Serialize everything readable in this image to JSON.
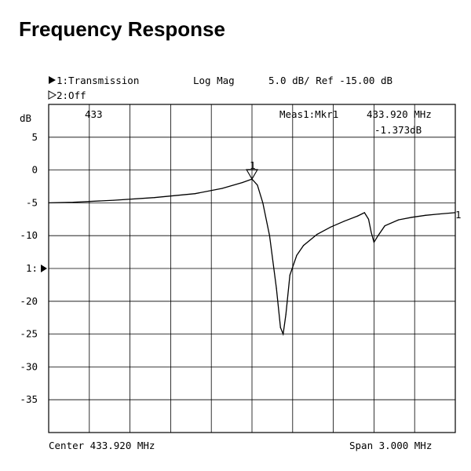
{
  "page": {
    "title": "Frequency Response"
  },
  "analyzer": {
    "trace1_label": "1:Transmission",
    "trace2_label": "2:Off",
    "format": "Log Mag",
    "scale": "5.0 dB/ Ref -15.00 dB",
    "unit": "dB",
    "tag": "433",
    "meas_label": "Meas1:Mkr1",
    "meas_freq": "433.920 MHz",
    "meas_value": "-1.373dB",
    "ref_marker_label": "1:",
    "marker_label": "1",
    "trace_end_label": "1",
    "center_label": "Center 433.920 MHz",
    "span_label": "Span 3.000 MHz"
  },
  "chart_data": {
    "type": "line",
    "title": "Frequency Response",
    "xlabel": "",
    "ylabel": "dB",
    "xlim": [
      432.42,
      435.42
    ],
    "ylim": [
      -40,
      10
    ],
    "grid": true,
    "y_ticks": [
      5,
      0,
      -5,
      -10,
      -15,
      -20,
      -25,
      -30,
      -35
    ],
    "y_tick_labels": [
      "5",
      "0",
      "-5",
      "-10",
      "1:",
      "-20",
      "-25",
      "-30",
      "-35"
    ],
    "reference_level": -15,
    "marker": {
      "name": "1",
      "x": 433.92,
      "y": -1.373
    },
    "series": [
      {
        "x": [
          432.42,
          432.6,
          432.9,
          433.2,
          433.5,
          433.7,
          433.85,
          433.92,
          433.96,
          434.0,
          434.05,
          434.1,
          434.13,
          434.15,
          434.17,
          434.2,
          434.25,
          434.3,
          434.4,
          434.5,
          434.6,
          434.7,
          434.75,
          434.78,
          434.8,
          434.82,
          434.85,
          434.9,
          435.0,
          435.1,
          435.2,
          435.3,
          435.42
        ],
        "values": [
          -5.0,
          -4.9,
          -4.6,
          -4.2,
          -3.6,
          -2.8,
          -1.9,
          -1.37,
          -2.3,
          -5.0,
          -10.0,
          -18.0,
          -24.0,
          -25.0,
          -22.0,
          -16.0,
          -13.0,
          -11.5,
          -9.8,
          -8.7,
          -7.8,
          -7.0,
          -6.5,
          -7.5,
          -9.5,
          -11.0,
          -10.0,
          -8.5,
          -7.6,
          -7.2,
          -6.9,
          -6.7,
          -6.5
        ]
      }
    ]
  }
}
